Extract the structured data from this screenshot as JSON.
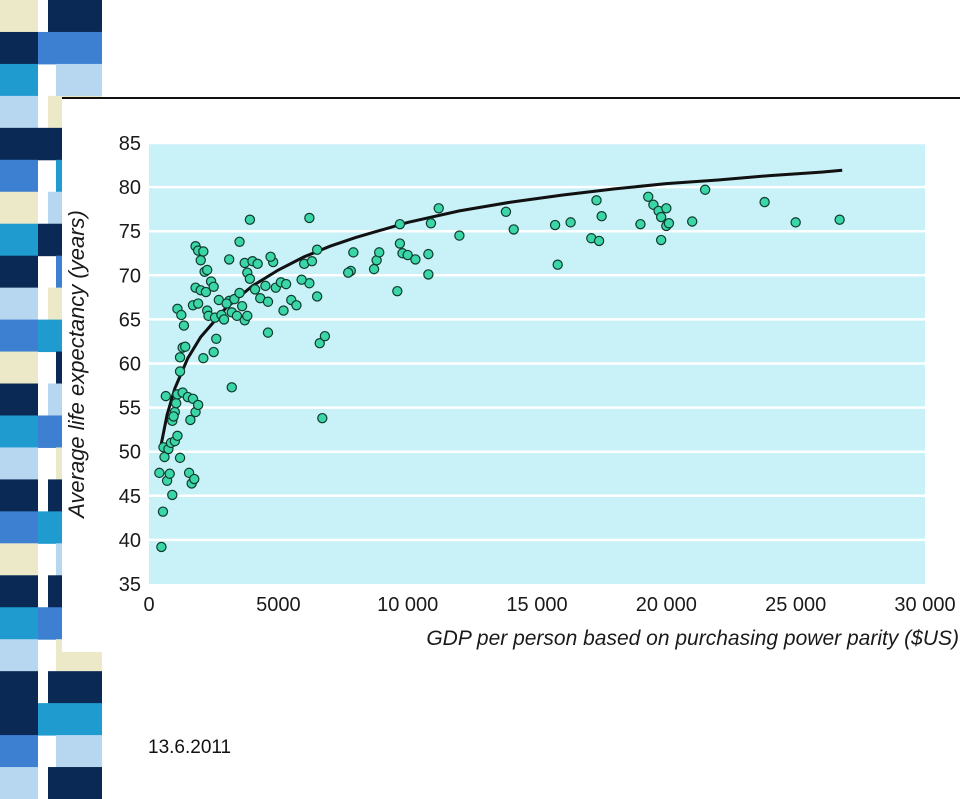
{
  "slide": {
    "date": "13.6.2011",
    "colors": {
      "strip_dark": "#0a2a55",
      "strip_blue": "#3d7fd0",
      "strip_light": "#b7d6f0",
      "strip_cream": "#ece9c8",
      "strip_teal": "#1f9bd0"
    }
  },
  "chart_data": {
    "type": "scatter",
    "title": "",
    "xlabel": "GDP per person based on purchasing power parity ($US)",
    "ylabel": "Average life expectancy (years)",
    "xlim": [
      0,
      30000
    ],
    "ylim": [
      35,
      85
    ],
    "x_ticks": [
      0,
      5000,
      10000,
      15000,
      20000,
      25000,
      30000
    ],
    "x_tick_labels": [
      "0",
      "5000",
      "10 000",
      "15 000",
      "20 000",
      "25 000",
      "30 000"
    ],
    "y_ticks": [
      35,
      40,
      45,
      50,
      55,
      60,
      65,
      70,
      75,
      80,
      85
    ],
    "y_tick_labels": [
      "35",
      "40",
      "45",
      "50",
      "55",
      "60",
      "65",
      "70",
      "75",
      "80",
      "85"
    ],
    "grid": "horizontal",
    "background_color": "#c8f1f8",
    "point_color": "#3ad6a8",
    "curve_color": "#111111",
    "trend_curve": {
      "type": "logarithmic",
      "x": [
        450,
        700,
        1000,
        1500,
        2000,
        3000,
        4000,
        5000,
        6000,
        7000,
        8000,
        10000,
        12000,
        14000,
        16000,
        18000,
        20000,
        22000,
        24000,
        26000,
        26800
      ],
      "y": [
        50.5,
        54.2,
        57.2,
        60.6,
        63.0,
        66.4,
        68.8,
        70.6,
        72.1,
        73.3,
        74.3,
        76.0,
        77.3,
        78.3,
        79.1,
        79.8,
        80.4,
        80.8,
        81.3,
        81.7,
        81.9
      ]
    },
    "points": [
      {
        "x": 480,
        "y": 39.2
      },
      {
        "x": 540,
        "y": 43.2
      },
      {
        "x": 400,
        "y": 47.6
      },
      {
        "x": 700,
        "y": 46.7
      },
      {
        "x": 800,
        "y": 47.5
      },
      {
        "x": 900,
        "y": 45.1
      },
      {
        "x": 560,
        "y": 50.5
      },
      {
        "x": 600,
        "y": 49.4
      },
      {
        "x": 750,
        "y": 50.3
      },
      {
        "x": 850,
        "y": 51.0
      },
      {
        "x": 1000,
        "y": 51.2
      },
      {
        "x": 1100,
        "y": 51.8
      },
      {
        "x": 1200,
        "y": 49.3
      },
      {
        "x": 650,
        "y": 56.3
      },
      {
        "x": 900,
        "y": 53.5
      },
      {
        "x": 1000,
        "y": 54.5
      },
      {
        "x": 1050,
        "y": 55.5
      },
      {
        "x": 1100,
        "y": 56.5
      },
      {
        "x": 950,
        "y": 54.0
      },
      {
        "x": 1300,
        "y": 56.7
      },
      {
        "x": 1500,
        "y": 56.2
      },
      {
        "x": 1600,
        "y": 53.6
      },
      {
        "x": 1700,
        "y": 56.0
      },
      {
        "x": 1800,
        "y": 54.5
      },
      {
        "x": 1900,
        "y": 55.3
      },
      {
        "x": 1550,
        "y": 47.6
      },
      {
        "x": 1650,
        "y": 46.4
      },
      {
        "x": 1750,
        "y": 46.9
      },
      {
        "x": 1200,
        "y": 59.1
      },
      {
        "x": 1200,
        "y": 60.7
      },
      {
        "x": 1300,
        "y": 61.8
      },
      {
        "x": 1400,
        "y": 61.9
      },
      {
        "x": 1100,
        "y": 66.2
      },
      {
        "x": 1250,
        "y": 65.5
      },
      {
        "x": 1350,
        "y": 64.3
      },
      {
        "x": 1800,
        "y": 73.3
      },
      {
        "x": 1900,
        "y": 72.8
      },
      {
        "x": 2000,
        "y": 71.7
      },
      {
        "x": 2100,
        "y": 72.7
      },
      {
        "x": 2150,
        "y": 70.4
      },
      {
        "x": 2250,
        "y": 70.6
      },
      {
        "x": 1800,
        "y": 68.6
      },
      {
        "x": 2000,
        "y": 68.3
      },
      {
        "x": 1700,
        "y": 66.6
      },
      {
        "x": 1900,
        "y": 66.8
      },
      {
        "x": 2200,
        "y": 68.1
      },
      {
        "x": 2400,
        "y": 69.3
      },
      {
        "x": 2500,
        "y": 68.7
      },
      {
        "x": 2250,
        "y": 66.0
      },
      {
        "x": 2300,
        "y": 65.4
      },
      {
        "x": 2550,
        "y": 65.2
      },
      {
        "x": 2800,
        "y": 65.5
      },
      {
        "x": 2900,
        "y": 65.0
      },
      {
        "x": 2700,
        "y": 67.2
      },
      {
        "x": 3100,
        "y": 67.1
      },
      {
        "x": 3300,
        "y": 67.3
      },
      {
        "x": 3000,
        "y": 66.8
      },
      {
        "x": 3200,
        "y": 65.8
      },
      {
        "x": 3400,
        "y": 65.4
      },
      {
        "x": 2600,
        "y": 62.8
      },
      {
        "x": 2500,
        "y": 61.3
      },
      {
        "x": 2100,
        "y": 60.6
      },
      {
        "x": 3100,
        "y": 71.8
      },
      {
        "x": 3500,
        "y": 73.8
      },
      {
        "x": 3700,
        "y": 71.4
      },
      {
        "x": 3800,
        "y": 70.3
      },
      {
        "x": 3900,
        "y": 69.6
      },
      {
        "x": 4000,
        "y": 71.6
      },
      {
        "x": 4200,
        "y": 71.3
      },
      {
        "x": 4100,
        "y": 68.4
      },
      {
        "x": 4300,
        "y": 67.4
      },
      {
        "x": 4500,
        "y": 68.8
      },
      {
        "x": 3500,
        "y": 68.0
      },
      {
        "x": 3600,
        "y": 66.5
      },
      {
        "x": 3700,
        "y": 64.9
      },
      {
        "x": 3800,
        "y": 65.4
      },
      {
        "x": 4600,
        "y": 67.0
      },
      {
        "x": 4900,
        "y": 68.6
      },
      {
        "x": 5100,
        "y": 69.2
      },
      {
        "x": 5300,
        "y": 69.0
      },
      {
        "x": 5200,
        "y": 66.0
      },
      {
        "x": 5500,
        "y": 67.2
      },
      {
        "x": 5700,
        "y": 66.6
      },
      {
        "x": 4800,
        "y": 71.5
      },
      {
        "x": 4700,
        "y": 72.1
      },
      {
        "x": 3900,
        "y": 76.3
      },
      {
        "x": 3200,
        "y": 57.3
      },
      {
        "x": 4600,
        "y": 63.5
      },
      {
        "x": 6000,
        "y": 71.3
      },
      {
        "x": 6300,
        "y": 71.6
      },
      {
        "x": 6200,
        "y": 69.1
      },
      {
        "x": 5900,
        "y": 69.5
      },
      {
        "x": 6200,
        "y": 76.5
      },
      {
        "x": 6500,
        "y": 72.9
      },
      {
        "x": 6500,
        "y": 67.6
      },
      {
        "x": 6600,
        "y": 62.3
      },
      {
        "x": 6800,
        "y": 63.1
      },
      {
        "x": 6700,
        "y": 53.8
      },
      {
        "x": 7800,
        "y": 70.5
      },
      {
        "x": 7900,
        "y": 72.6
      },
      {
        "x": 7700,
        "y": 70.3
      },
      {
        "x": 8700,
        "y": 70.7
      },
      {
        "x": 8800,
        "y": 71.7
      },
      {
        "x": 8900,
        "y": 72.6
      },
      {
        "x": 9600,
        "y": 68.2
      },
      {
        "x": 9700,
        "y": 73.6
      },
      {
        "x": 9700,
        "y": 75.8
      },
      {
        "x": 9800,
        "y": 72.5
      },
      {
        "x": 10000,
        "y": 72.3
      },
      {
        "x": 10300,
        "y": 71.8
      },
      {
        "x": 10800,
        "y": 70.1
      },
      {
        "x": 10800,
        "y": 72.4
      },
      {
        "x": 10900,
        "y": 75.9
      },
      {
        "x": 11200,
        "y": 77.6
      },
      {
        "x": 12000,
        "y": 74.5
      },
      {
        "x": 13800,
        "y": 77.2
      },
      {
        "x": 14100,
        "y": 75.2
      },
      {
        "x": 15700,
        "y": 75.7
      },
      {
        "x": 15800,
        "y": 71.2
      },
      {
        "x": 16300,
        "y": 76.0
      },
      {
        "x": 17100,
        "y": 74.2
      },
      {
        "x": 17300,
        "y": 78.5
      },
      {
        "x": 17400,
        "y": 73.9
      },
      {
        "x": 17500,
        "y": 76.7
      },
      {
        "x": 19000,
        "y": 75.8
      },
      {
        "x": 19300,
        "y": 78.9
      },
      {
        "x": 19500,
        "y": 78.0
      },
      {
        "x": 19700,
        "y": 77.3
      },
      {
        "x": 19800,
        "y": 76.6
      },
      {
        "x": 19800,
        "y": 74.0
      },
      {
        "x": 20000,
        "y": 77.6
      },
      {
        "x": 20000,
        "y": 75.6
      },
      {
        "x": 20100,
        "y": 75.9
      },
      {
        "x": 21000,
        "y": 76.1
      },
      {
        "x": 21500,
        "y": 79.7
      },
      {
        "x": 23800,
        "y": 78.3
      },
      {
        "x": 25000,
        "y": 76.0
      },
      {
        "x": 26700,
        "y": 76.3
      }
    ]
  }
}
